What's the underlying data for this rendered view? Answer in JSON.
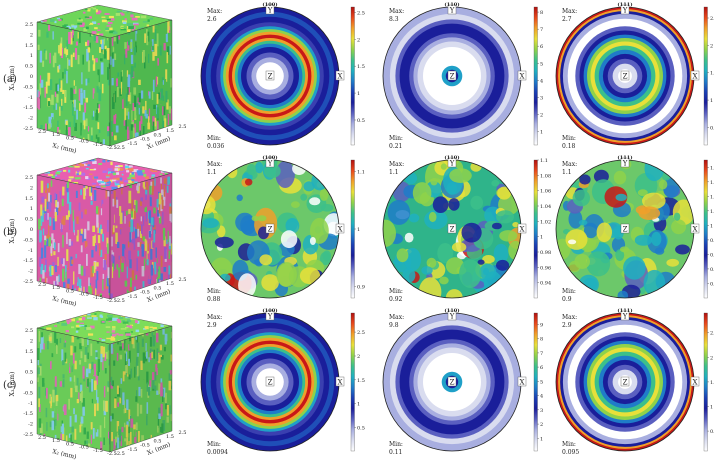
{
  "rows": [
    {
      "label": "(a)",
      "cube": {
        "top_colors": [
          "#6ed65a",
          "#2fb34f",
          "#a6e36a",
          "#8ad3f0",
          "#e46fb8",
          "#f0e85a",
          "#56c87a"
        ],
        "front_colors": [
          "#5cc85c",
          "#2ea54a",
          "#9fdc6b",
          "#7cc3ea",
          "#de6eb0",
          "#e9e25a",
          "#3fbf70"
        ],
        "side_colors": [
          "#4fb84f",
          "#269a44",
          "#8dcf5f",
          "#6db4dc",
          "#cf5fa2",
          "#dcd452",
          "#36b066"
        ]
      },
      "poles": [
        {
          "hkl": "(100)",
          "max": "2.6",
          "min": "0.036",
          "pattern": "ring100",
          "scale_ticks": [
            "2.5",
            "2",
            "1.5",
            "1",
            "0.5"
          ],
          "scale_max": 2.6,
          "scale_min": 0.036
        },
        {
          "hkl": "(110)",
          "max": "8.3",
          "min": "0.21",
          "pattern": "ring110",
          "scale_ticks": [
            "8",
            "7",
            "6",
            "5",
            "4",
            "3",
            "2",
            "1"
          ],
          "scale_max": 8.3,
          "scale_min": 0.21
        },
        {
          "hkl": "(111)",
          "max": "2.7",
          "min": "0.18",
          "pattern": "ring111",
          "scale_ticks": [
            "2.5",
            "2",
            "1.5",
            "1",
            "0.5"
          ],
          "scale_max": 2.7,
          "scale_min": 0.18
        }
      ]
    },
    {
      "label": "(b)",
      "cube": {
        "top_colors": [
          "#e85fb0",
          "#5fd6e8",
          "#f0e860",
          "#7be06a",
          "#b46ee8",
          "#ef8a5a",
          "#5a8ef0",
          "#e8d0f0"
        ],
        "front_colors": [
          "#d95aa6",
          "#52c3d6",
          "#e2d955",
          "#6fcf60",
          "#a463d6",
          "#de7c52",
          "#5280dc",
          "#d6bfdc"
        ],
        "side_colors": [
          "#c8529a",
          "#48b3c6",
          "#d3c84d",
          "#63be56",
          "#9558c6",
          "#cc704a",
          "#4a74cc",
          "#c6b0cc"
        ]
      },
      "poles": [
        {
          "hkl": "(100)",
          "max": "1.1",
          "min": "0.88",
          "pattern": "random",
          "scale_ticks": [
            "1.1",
            "1",
            "0.9"
          ],
          "scale_max": 1.12,
          "scale_min": 0.88
        },
        {
          "hkl": "(110)",
          "max": "1.1",
          "min": "0.92",
          "pattern": "random",
          "scale_ticks": [
            "1.1",
            "1.08",
            "1.06",
            "1.04",
            "1.02",
            "1",
            "0.98",
            "0.96",
            "0.94"
          ],
          "scale_max": 1.1,
          "scale_min": 0.92
        },
        {
          "hkl": "(111)",
          "max": "1.1",
          "min": "0.9",
          "pattern": "random",
          "scale_ticks": [
            "1.08",
            "1.06",
            "1.04",
            "1.02",
            "1",
            "0.98",
            "0.96",
            "0.94",
            "0.92"
          ],
          "scale_max": 1.09,
          "scale_min": 0.9
        }
      ]
    },
    {
      "label": "(c)",
      "cube": {
        "top_colors": [
          "#7cdc5a",
          "#3fbe52",
          "#b0e66e",
          "#90d8ee",
          "#e27ab8",
          "#eee25a",
          "#5cca7a"
        ],
        "front_colors": [
          "#6acb58",
          "#35ab4c",
          "#a2d86a",
          "#80c8e2",
          "#d46cae",
          "#e0d554",
          "#4cb86c"
        ],
        "side_colors": [
          "#5ab94e",
          "#2c9a44",
          "#92c85e",
          "#70b8d2",
          "#c2609c",
          "#d0c44c",
          "#40a862"
        ]
      },
      "poles": [
        {
          "hkl": "(100)",
          "max": "2.9",
          "min": "0.0094",
          "pattern": "ring100",
          "scale_ticks": [
            "2.5",
            "2",
            "1.5",
            "1",
            "0.5"
          ],
          "scale_max": 2.9,
          "scale_min": 0.0094
        },
        {
          "hkl": "(110)",
          "max": "9.8",
          "min": "0.11",
          "pattern": "ring110",
          "scale_ticks": [
            "9",
            "8",
            "7",
            "6",
            "5",
            "4",
            "3",
            "2",
            "1"
          ],
          "scale_max": 9.8,
          "scale_min": 0.11
        },
        {
          "hkl": "(111)",
          "max": "2.9",
          "min": "0.095",
          "pattern": "ring111",
          "scale_ticks": [
            "2.5",
            "2",
            "1.5",
            "1",
            "0.5"
          ],
          "scale_max": 2.9,
          "scale_min": 0.095
        }
      ]
    }
  ],
  "labels": {
    "max_prefix": "Max:",
    "min_prefix": "Min:",
    "axis_x": "X",
    "axis_y": "Y",
    "axis_z": "Z",
    "cube_axis_vertical": "X₃ (mm)",
    "cube_axis_left": "X₂ (mm)",
    "cube_axis_right": "X₁ (mm)",
    "cube_ticks_vertical": [
      "2.5",
      "2",
      "1.5",
      "1",
      "0.5",
      "0",
      "-0.5",
      "-1",
      "-1.5",
      "-2",
      "-2.5"
    ],
    "cube_ticks_left": [
      "2.5",
      "1.5",
      "0.5",
      "-0.5",
      "-1.5",
      "-2.5"
    ],
    "cube_ticks_right": [
      "-2.5",
      "-1.5",
      "-0.5",
      "0.5",
      "1.5",
      "2.5"
    ]
  },
  "colors": {
    "jet": [
      "#ffffff",
      "#d9dcef",
      "#a8aee0",
      "#5a5fc0",
      "#1a1e9a",
      "#1b3fb4",
      "#1f7cc8",
      "#1fb0c0",
      "#3cc08a",
      "#8fd24a",
      "#e8e03a",
      "#f0a02a",
      "#e8481c",
      "#b01010"
    ]
  }
}
